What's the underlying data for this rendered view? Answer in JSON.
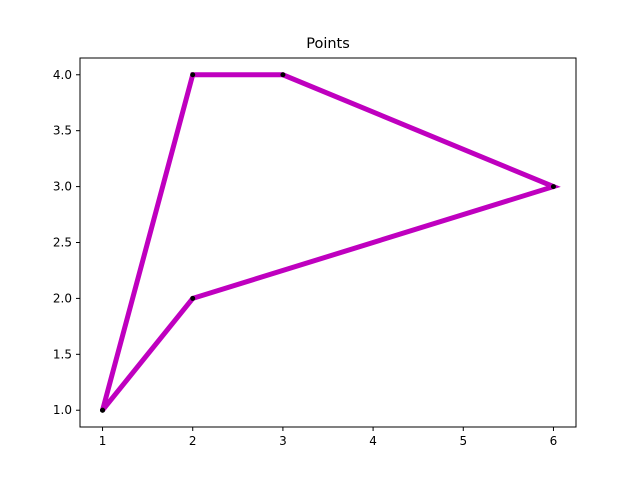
{
  "chart_data": {
    "type": "line",
    "title": "Points",
    "xlabel": "",
    "ylabel": "",
    "xlim": [
      0.75,
      6.25
    ],
    "ylim": [
      0.85,
      4.15
    ],
    "x_ticks": [
      1,
      2,
      3,
      4,
      5,
      6
    ],
    "y_ticks": [
      1.0,
      1.5,
      2.0,
      2.5,
      3.0,
      3.5,
      4.0
    ],
    "x_tick_labels": [
      "1",
      "2",
      "3",
      "4",
      "5",
      "6"
    ],
    "y_tick_labels": [
      "1.0",
      "1.5",
      "2.0",
      "2.5",
      "3.0",
      "3.5",
      "4.0"
    ],
    "grid": false,
    "series": [
      {
        "x": [
          1,
          2,
          3,
          6,
          2,
          1
        ],
        "y": [
          1,
          4,
          4,
          3,
          2,
          1
        ],
        "line_color": "#bf00bf",
        "marker_color": "#000000"
      }
    ]
  }
}
